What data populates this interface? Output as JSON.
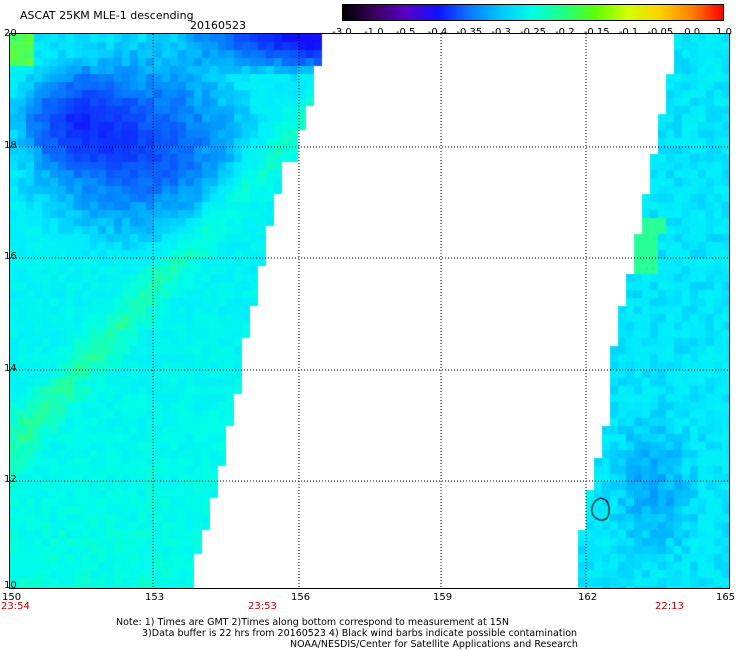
{
  "header": {
    "title": "ASCAT 25KM MLE-1 descending",
    "date": "20160523"
  },
  "colorbar": {
    "labels": [
      "-3.0",
      "-1.0",
      "-0.5",
      "-0.4",
      "-0.35",
      "-0.3",
      "-0.25",
      "-0.2",
      "-0.15",
      "-0.1",
      "-0.05",
      "0.0",
      "1.0"
    ],
    "colors": [
      "#000000",
      "#3a0060",
      "#5a00c8",
      "#1010ff",
      "#0a78ff",
      "#00c8ff",
      "#00ffe6",
      "#20ff80",
      "#60ff00",
      "#d2ff00",
      "#ffd200",
      "#ff8200",
      "#ff0000"
    ]
  },
  "map": {
    "lon_ticks": [
      "150",
      "153",
      "156",
      "159",
      "162",
      "165"
    ],
    "lat_ticks": [
      "20",
      "18",
      "16",
      "14",
      "12",
      "10"
    ],
    "time_labels": [
      "23:54",
      "23:53",
      "22:13"
    ]
  },
  "notes": {
    "line1": "Note: 1) Times are GMT 2)Times along bottom correspond to measurement at 15N",
    "line2": "3)Data buffer is 22 hrs from 20160523 4) Black wind barbs indicate possible contamination",
    "line3": "NOAA/NESDIS/Center for Satellite Applications and Research"
  }
}
